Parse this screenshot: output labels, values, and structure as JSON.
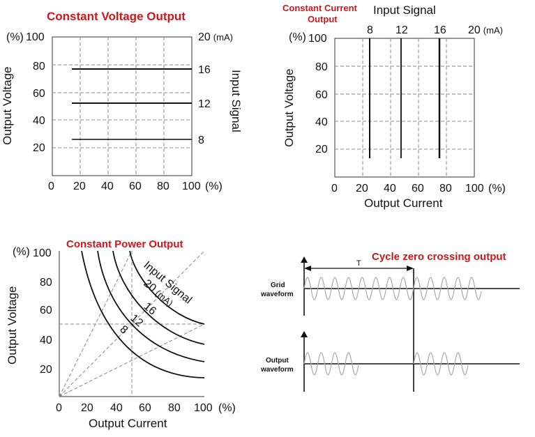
{
  "panel_cv": {
    "title": "Constant Voltage Output",
    "y_unit": "(%)",
    "y_ticks": [
      "100",
      "80",
      "60",
      "40",
      "20"
    ],
    "x_ticks": [
      "0",
      "20",
      "40",
      "60",
      "80",
      "100"
    ],
    "x_unit": "(%)",
    "right_unit": "20",
    "right_unit_ma": "(mA)",
    "right_ticks": [
      "16",
      "12",
      "8"
    ],
    "ylabel": "Output Voltage",
    "right_label": "Input Signal"
  },
  "panel_cc": {
    "title_line1": "Constant Current",
    "title_line2": "Output",
    "top_label": "Input Signal",
    "top_ticks": [
      "8",
      "12",
      "16",
      "20"
    ],
    "top_unit_ma": "(mA)",
    "y_unit": "(%)",
    "y_ticks": [
      "100",
      "80",
      "60",
      "40",
      "20"
    ],
    "x_ticks": [
      "0",
      "20",
      "40",
      "60",
      "80",
      "100"
    ],
    "x_unit": "(%)",
    "ylabel": "Output Voltage",
    "xlabel": "Output Current"
  },
  "panel_cp": {
    "title": "Constant Power Output",
    "y_unit": "(%)",
    "y_ticks": [
      "100",
      "80",
      "60",
      "40",
      "20"
    ],
    "x_ticks": [
      "0",
      "20",
      "40",
      "60",
      "80",
      "100"
    ],
    "x_unit": "(%)",
    "ylabel": "Output Voltage",
    "xlabel": "Output Current",
    "curve_label": "Input Signal",
    "curve_value_20": "20",
    "curve_unit_ma": "(mA)",
    "curve_values": [
      "16",
      "12",
      "8"
    ]
  },
  "panel_zc": {
    "title": "Cycle zero crossing output",
    "period_label": "T",
    "grid_label_1": "Grid",
    "grid_label_2": "waveform",
    "out_label_1": "Output",
    "out_label_2": "waveform"
  }
}
